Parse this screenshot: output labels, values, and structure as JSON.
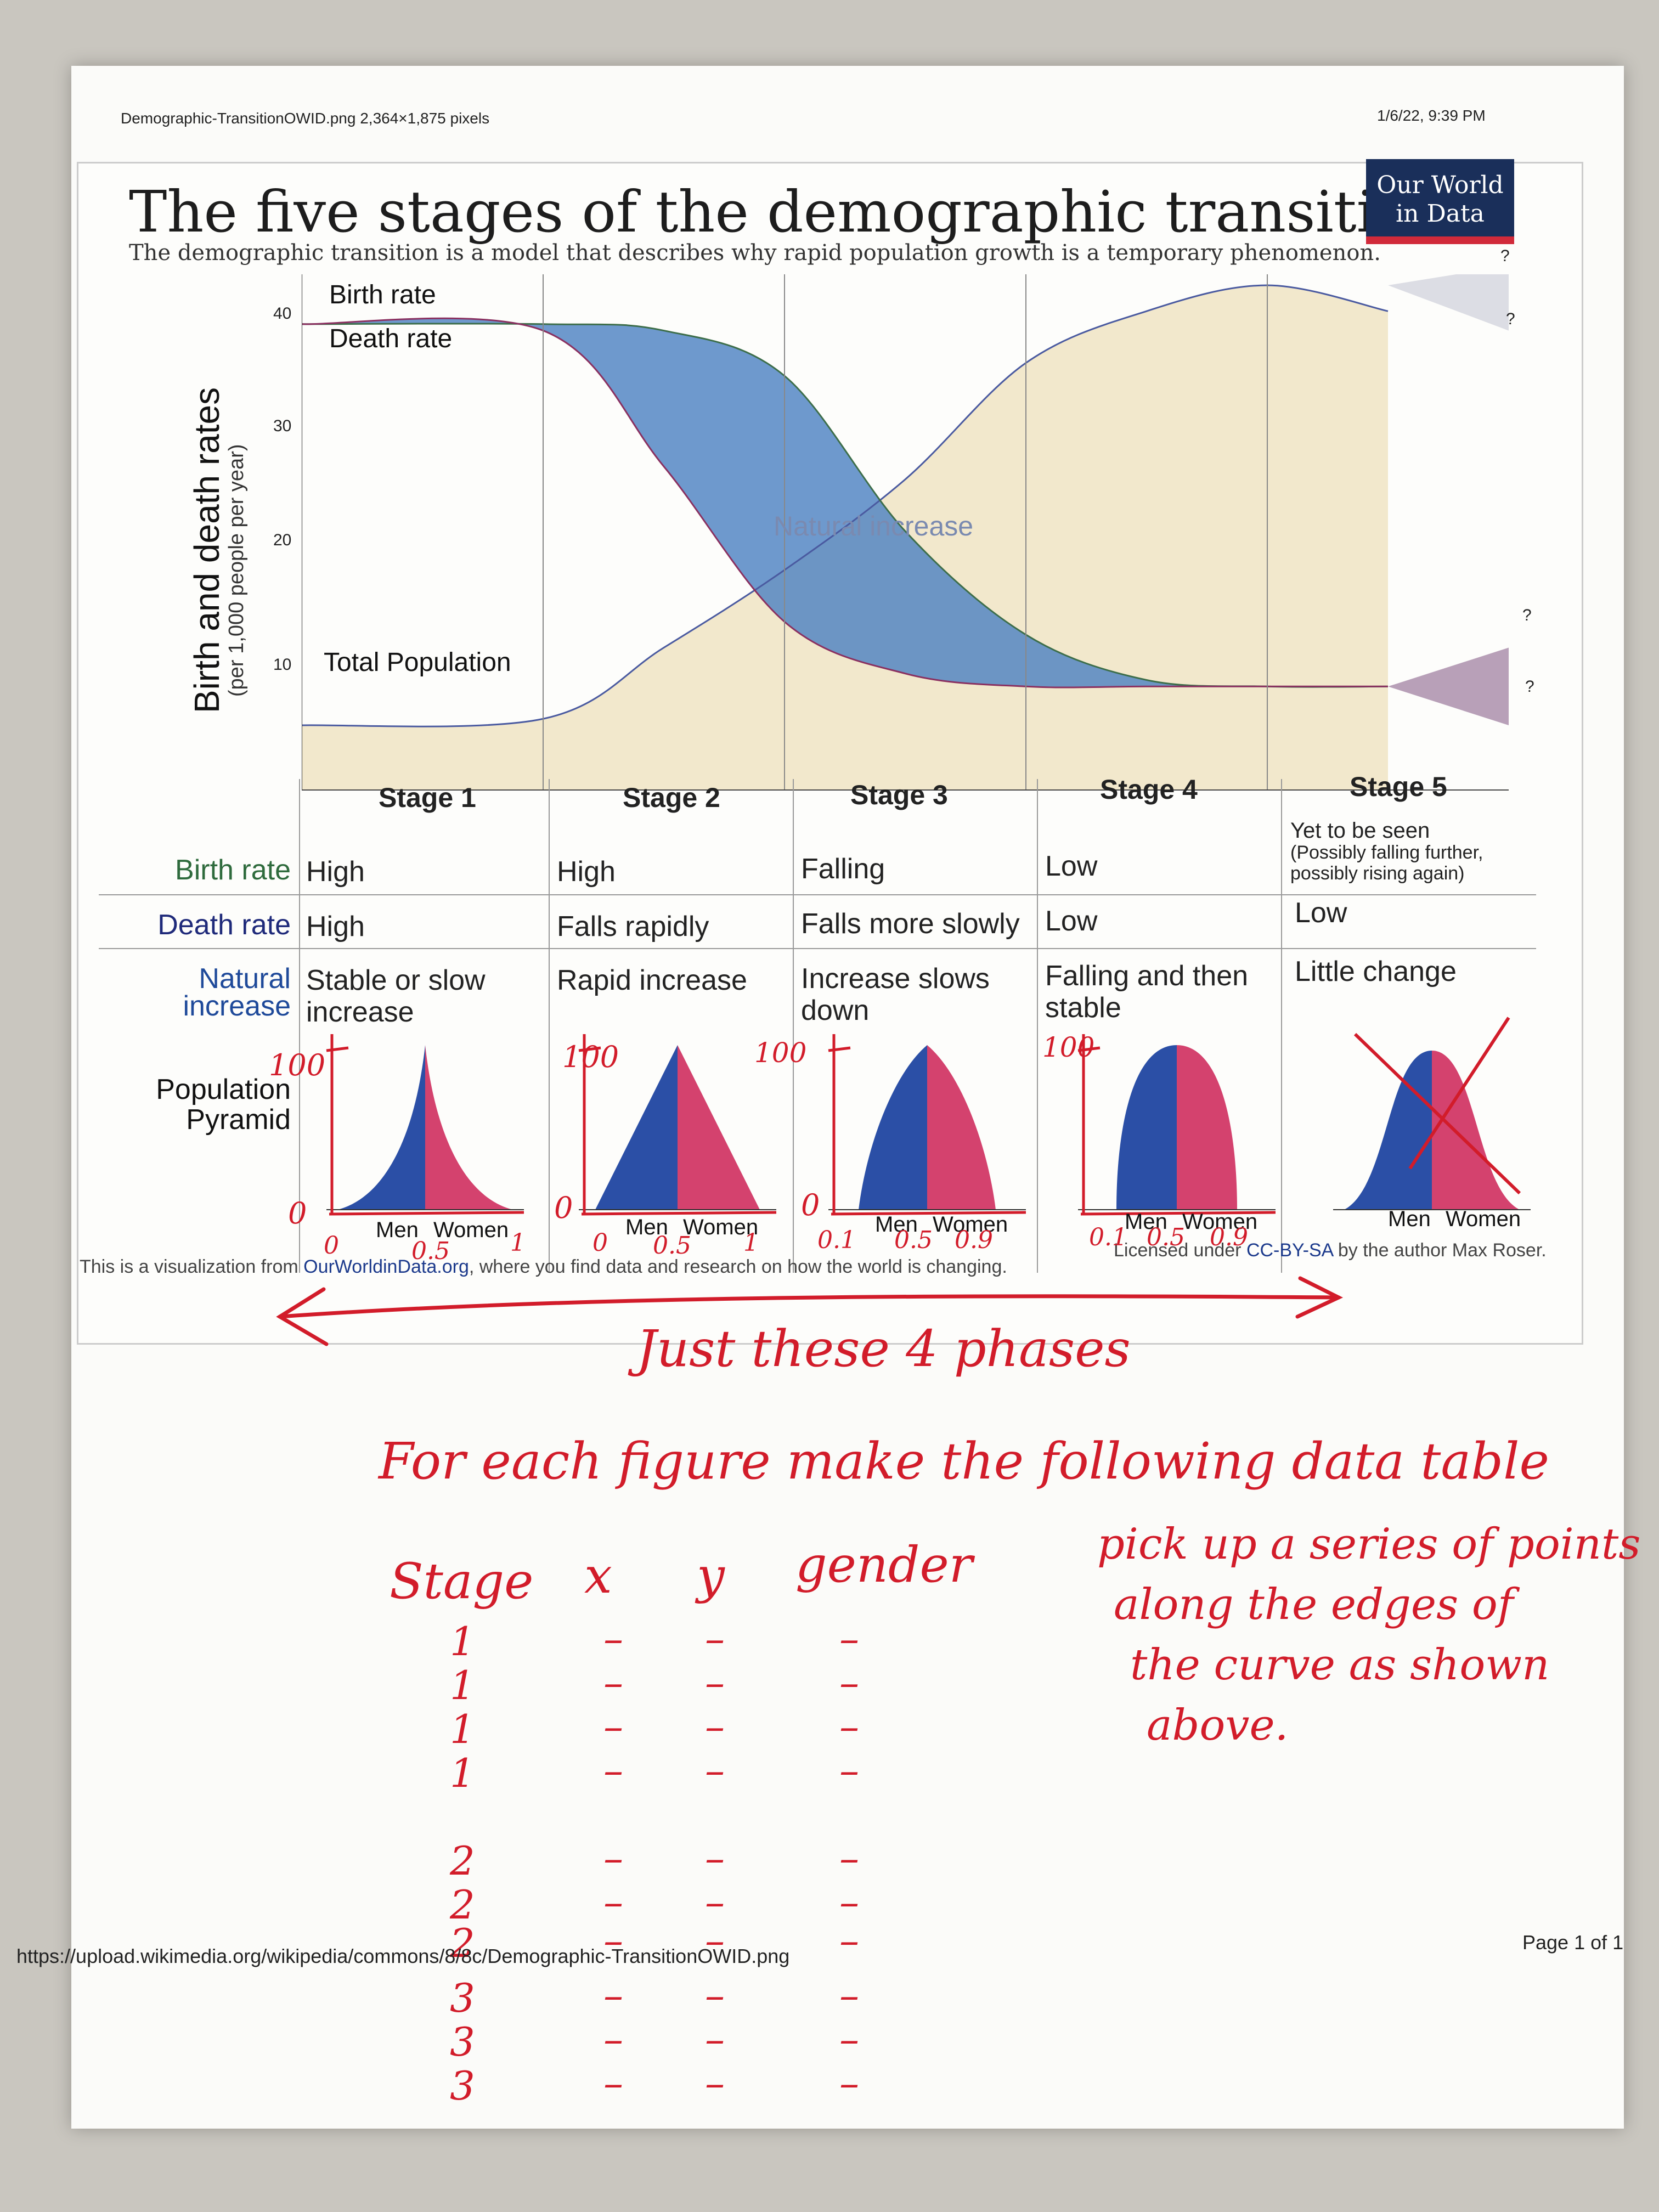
{
  "print_header": {
    "file_info": "Demographic-TransitionOWID.png 2,364×1,875 pixels",
    "datetime": "1/6/22, 9:39 PM",
    "url": "https://upload.wikimedia.org/wikipedia/commons/8/8c/Demographic-TransitionOWID.png",
    "page": "Page 1 of 1"
  },
  "figure": {
    "title": "The five stages of the demographic transition",
    "subtitle": "The demographic transition is a model that describes why rapid population growth is a temporary phenomenon.",
    "logo_line1": "Our World",
    "logo_line2": "in Data",
    "ylabel": "Birth and death rates",
    "ylabel_units": "(per 1,000 people per year)",
    "yticks": [
      "40",
      "30",
      "20",
      "10"
    ],
    "labels": {
      "birth_rate": "Birth rate",
      "death_rate": "Death rate",
      "total_population": "Total Population",
      "natural_increase": "Natural increase",
      "question": "?"
    },
    "stages": [
      "Stage 1",
      "Stage 2",
      "Stage 3",
      "Stage 4",
      "Stage 5"
    ],
    "row_headers": {
      "birth_rate": "Birth rate",
      "death_rate": "Death rate",
      "natural_increase_1": "Natural",
      "natural_increase_2": "increase",
      "pyramid_1": "Population",
      "pyramid_2": "Pyramid"
    },
    "birth_rate_row": [
      "High",
      "High",
      "Falling",
      "Low"
    ],
    "stage5_birth_1": "Yet to be seen",
    "stage5_birth_2": "(Possibly falling further,",
    "stage5_birth_3": "possibly rising again)",
    "death_rate_row": [
      "High",
      "Falls rapidly",
      "Falls more slowly",
      "Low",
      "Low"
    ],
    "natural_increase_row": [
      [
        "Stable or slow",
        "increase"
      ],
      [
        "Rapid increase",
        ""
      ],
      [
        "Increase slows",
        "down"
      ],
      [
        "Falling and then",
        "stable"
      ],
      [
        "Little change",
        ""
      ]
    ],
    "pyramid_labels": [
      "Men",
      "Women"
    ],
    "footer_left_pre": "This is a visualization from ",
    "footer_left_link": "OurWorldinData.org",
    "footer_left_post": ", where you find data and research on how the world is changing.",
    "footer_right_pre": "Licensed under ",
    "footer_right_link": "CC-BY-SA",
    "footer_right_post": " by the author Max Roser."
  },
  "handwriting": {
    "pyramid_axis": {
      "y_top": "100",
      "y_bottom": "0",
      "x_marks": [
        [
          "0",
          "0.5",
          "1"
        ],
        [
          "0",
          "0.5",
          "1"
        ],
        [
          "0.1",
          "0.5",
          "0.9"
        ],
        [
          "0.1",
          "0.5",
          "0.9"
        ]
      ]
    },
    "phases_note": "Just these 4 phases",
    "instruction": "For each figure make the following data table",
    "table_headers": [
      "Stage",
      "x",
      "y",
      "gender"
    ],
    "table_stage_values": [
      "1",
      "1",
      "1",
      "1",
      "2",
      "2",
      "2",
      "3",
      "3",
      "3"
    ],
    "dash": "–",
    "side_note": [
      "pick up a series of points",
      "along the edges of",
      "the curve as shown",
      "above."
    ]
  },
  "chart_data": {
    "type": "line",
    "x_labels": [
      "Stage 1",
      "Stage 2",
      "Stage 3",
      "Stage 4",
      "Stage 5"
    ],
    "ylim": [
      3,
      42
    ],
    "ylabel": "Birth and death rates",
    "series": [
      {
        "name": "Birth rate",
        "x": [
          0,
          1,
          1.5,
          2,
          2.5,
          3,
          3.5,
          4,
          4.5
        ],
        "values": [
          39,
          39,
          38.5,
          35,
          23,
          15,
          11.5,
          11,
          11
        ]
      },
      {
        "name": "Death rate",
        "x": [
          0,
          1,
          1.5,
          2,
          2.5,
          3,
          3.5,
          4,
          4.5
        ],
        "values": [
          39,
          38.5,
          28,
          16,
          12,
          11,
          11,
          11,
          11
        ]
      },
      {
        "name": "Total Population",
        "x": [
          0,
          1,
          1.5,
          2,
          2.5,
          3,
          3.5,
          4,
          4.5
        ],
        "values": [
          8,
          8.5,
          14,
          20,
          27,
          36,
          40,
          42,
          40
        ]
      }
    ],
    "colors": {
      "natural_increase": "#4a7fc2",
      "population_fill": "#f2e8cc",
      "men": "#2b4fa6",
      "women": "#d4426e",
      "birth_line": "#3d6e4a",
      "death_line": "#8a3060",
      "pop_line": "#4a5aa0"
    }
  }
}
